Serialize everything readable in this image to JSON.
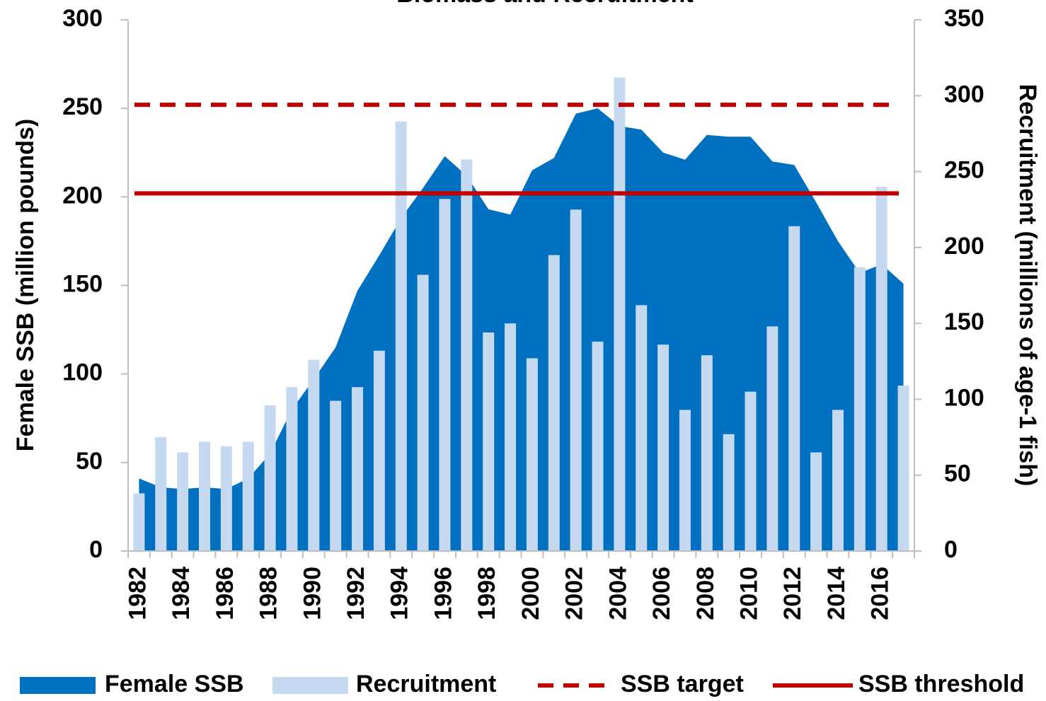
{
  "chart_data": {
    "type": "bar-area",
    "title": "Biomass and Recruitment",
    "y_label": "Female SSB (million pounds)",
    "y2_label": "Recruitment (millions of age-1 fish)",
    "categories": [
      "1982",
      null,
      "1984",
      null,
      "1986",
      null,
      "1988",
      null,
      "1990",
      null,
      "1992",
      null,
      "1994",
      null,
      "1996",
      null,
      "1998",
      null,
      "2000",
      null,
      "2002",
      null,
      "2004",
      null,
      "2006",
      null,
      "2008",
      null,
      "2010",
      null,
      "2012",
      null,
      "2014",
      null,
      "2016",
      null
    ],
    "ylim": [
      0,
      300
    ],
    "yticks": [
      0,
      50,
      100,
      150,
      200,
      250,
      300
    ],
    "y2lim": [
      0,
      350
    ],
    "y2ticks": [
      0,
      50,
      100,
      150,
      200,
      250,
      300,
      350
    ],
    "series": [
      {
        "name": "Female SSB",
        "kind": "area",
        "axis": "y",
        "color": "#0070c0",
        "values": [
          41,
          36,
          35,
          36,
          35,
          41,
          55,
          80,
          97,
          115,
          147,
          167,
          188,
          205,
          223,
          212,
          193,
          190,
          215,
          222,
          247,
          250,
          240,
          238,
          225,
          221,
          235,
          234,
          234,
          220,
          218,
          197,
          175,
          157,
          162,
          151
        ]
      },
      {
        "name": "Recruitment",
        "kind": "bar",
        "axis": "y2",
        "color": "#c5d9f1",
        "values": [
          38,
          75,
          65,
          72,
          69,
          72,
          96,
          108,
          126,
          99,
          108,
          132,
          283,
          182,
          232,
          258,
          144,
          150,
          127,
          195,
          225,
          138,
          312,
          162,
          136,
          93,
          129,
          77,
          105,
          148,
          214,
          65,
          93,
          187,
          240,
          109
        ]
      }
    ],
    "reference_lines": [
      {
        "name": "SSB target",
        "value": 252,
        "axis": "y",
        "color": "#c00000",
        "style": "dashed"
      },
      {
        "name": "SSB threshold",
        "value": 202,
        "axis": "y",
        "color": "#c00000",
        "style": "solid"
      }
    ]
  }
}
